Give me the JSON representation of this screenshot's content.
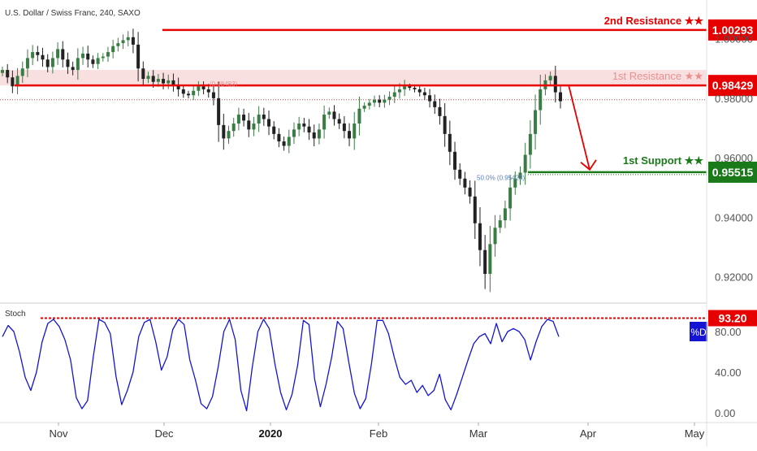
{
  "header": {
    "symbol_title": "U.S. Dollar / Swiss Franc, 240, SAXO"
  },
  "colors": {
    "up": "#3a7d44",
    "down": "#222222",
    "resistance": "#e60000",
    "resistance_zone": "#f6d3d3",
    "support": "#1a7a1a",
    "stoch_line": "#1414d2",
    "stoch_badge": "#1414d2"
  },
  "chart_data": [
    {
      "type": "candlestick",
      "title": "U.S. Dollar / Swiss Franc, 240, SAXO",
      "x_ticks": [
        "Nov",
        "Dec",
        "2020",
        "Feb",
        "Mar",
        "Apr",
        "May"
      ],
      "bold_x_tick": "2020",
      "y_ticks": [
        "0.92000",
        "0.94000",
        "0.96000",
        "0.98000",
        "1.00000"
      ],
      "ylim": [
        0.912,
        1.013
      ],
      "series_close": [
        0.9895,
        0.987,
        0.984,
        0.9875,
        0.99,
        0.9935,
        0.9955,
        0.9945,
        0.993,
        0.9905,
        0.9935,
        0.9965,
        0.993,
        0.9905,
        0.9895,
        0.9935,
        0.995,
        0.993,
        0.9915,
        0.9935,
        0.994,
        0.9955,
        0.9975,
        0.9985,
        0.9995,
        1.0005,
        0.998,
        0.99,
        0.9865,
        0.9875,
        0.9855,
        0.9865,
        0.985,
        0.986,
        0.9845,
        0.983,
        0.9815,
        0.981,
        0.9825,
        0.984,
        0.983,
        0.982,
        0.98,
        0.971,
        0.9665,
        0.969,
        0.9715,
        0.9745,
        0.9725,
        0.9695,
        0.9715,
        0.9745,
        0.973,
        0.9705,
        0.968,
        0.9655,
        0.964,
        0.967,
        0.9695,
        0.9715,
        0.9705,
        0.9685,
        0.9665,
        0.9695,
        0.9745,
        0.9755,
        0.973,
        0.9715,
        0.969,
        0.9665,
        0.9715,
        0.9765,
        0.9775,
        0.9785,
        0.9795,
        0.9785,
        0.9795,
        0.9805,
        0.982,
        0.983,
        0.984,
        0.9835,
        0.983,
        0.982,
        0.981,
        0.979,
        0.977,
        0.974,
        0.968,
        0.962,
        0.956,
        0.953,
        0.95,
        0.947,
        0.938,
        0.929,
        0.921,
        0.931,
        0.9365,
        0.939,
        0.943,
        0.95,
        0.953,
        0.955,
        0.961,
        0.968,
        0.976,
        0.983,
        0.986,
        0.9875,
        0.982,
        0.979
      ],
      "levels": [
        {
          "label": "2nd Resistance ★★",
          "value": 1.00293,
          "value_label": "1.00293"
        },
        {
          "label": "1st Resistance ★★",
          "value": 0.98429,
          "value_label": "0.98429"
        },
        {
          "label": "1st Support ★★",
          "value": 0.95515,
          "value_label": "0.95515"
        }
      ],
      "resistance_zone": [
        0.98429,
        0.9895
      ],
      "reference_line": 0.9795,
      "fib_labels": [
        {
          "text": "(0.98483)",
          "value": 0.98483
        },
        {
          "text": "50.0% (0.95423)",
          "value": 0.95423
        }
      ],
      "projection": {
        "from_value": 0.9845,
        "to_value": 0.9552
      }
    },
    {
      "type": "line",
      "panel_label": "Stoch",
      "badge": "%D",
      "y_ticks": [
        "0.00",
        "40.00",
        "80.00"
      ],
      "ylim": [
        0,
        100
      ],
      "overbought": {
        "value": 93.2,
        "label": "93.20"
      },
      "series": [
        {
          "values": [
            75,
            86,
            80,
            60,
            35,
            22,
            40,
            70,
            88,
            92,
            85,
            72,
            52,
            15,
            4,
            12,
            55,
            92,
            89,
            78,
            36,
            8,
            22,
            40,
            75,
            89,
            92,
            70,
            42,
            55,
            82,
            92,
            87,
            52,
            32,
            9,
            4,
            16,
            45,
            80,
            92,
            72,
            22,
            2,
            45,
            80,
            92,
            83,
            48,
            20,
            3,
            18,
            47,
            91,
            87,
            33,
            6,
            28,
            55,
            90,
            83,
            50,
            19,
            4,
            14,
            48,
            91,
            91,
            78,
            55,
            35,
            28,
            32,
            20,
            27,
            17,
            22,
            38,
            13,
            3,
            18,
            35,
            52,
            68,
            75,
            78,
            68,
            88,
            70,
            80,
            83,
            80,
            72,
            52,
            70,
            85,
            92,
            90,
            75
          ]
        }
      ]
    }
  ]
}
